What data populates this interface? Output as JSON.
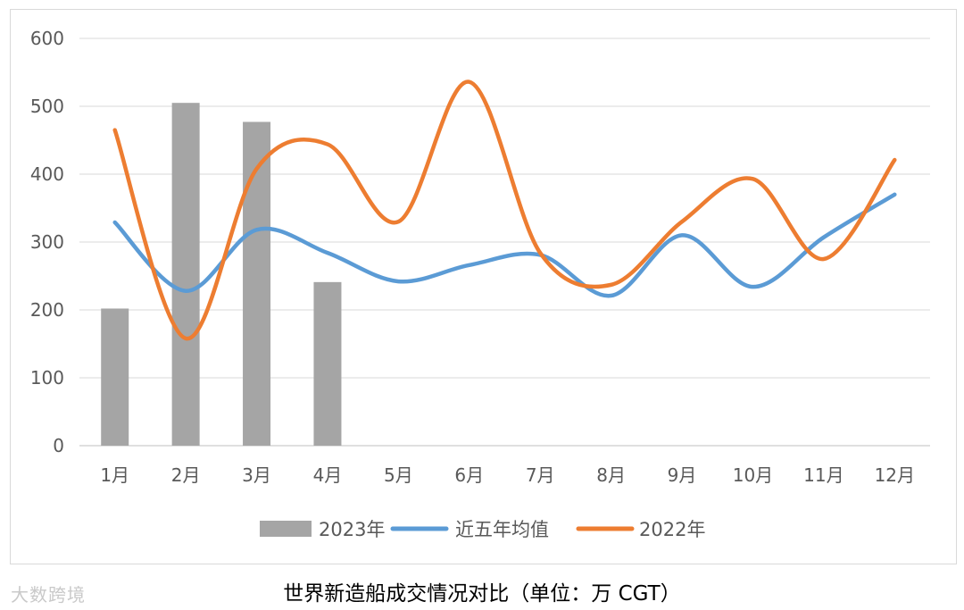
{
  "chart_data": {
    "type": "bar",
    "title": "",
    "xlabel": "",
    "ylabel": "",
    "categories": [
      "1月",
      "2月",
      "3月",
      "4月",
      "5月",
      "6月",
      "7月",
      "8月",
      "9月",
      "10月",
      "11月",
      "12月"
    ],
    "ylim": [
      0,
      600
    ],
    "yticks": [
      0,
      100,
      200,
      300,
      400,
      500,
      600
    ],
    "grid": true,
    "legend_position": "bottom",
    "series": [
      {
        "name": "2023年",
        "kind": "bar",
        "color": "#a5a5a5",
        "values": [
          202,
          505,
          477,
          241,
          null,
          null,
          null,
          null,
          null,
          null,
          null,
          null
        ]
      },
      {
        "name": "近五年均值",
        "kind": "line",
        "color": "#5b9bd5",
        "values": [
          329,
          228,
          318,
          284,
          242,
          266,
          281,
          221,
          310,
          234,
          307,
          370
        ]
      },
      {
        "name": "2022年",
        "kind": "line",
        "color": "#ed7d31",
        "values": [
          465,
          158,
          408,
          444,
          330,
          536,
          284,
          237,
          330,
          393,
          275,
          421
        ]
      }
    ]
  },
  "caption": "世界新造船成交情况对比（单位：万 CGT）",
  "watermark": "大数跨境"
}
